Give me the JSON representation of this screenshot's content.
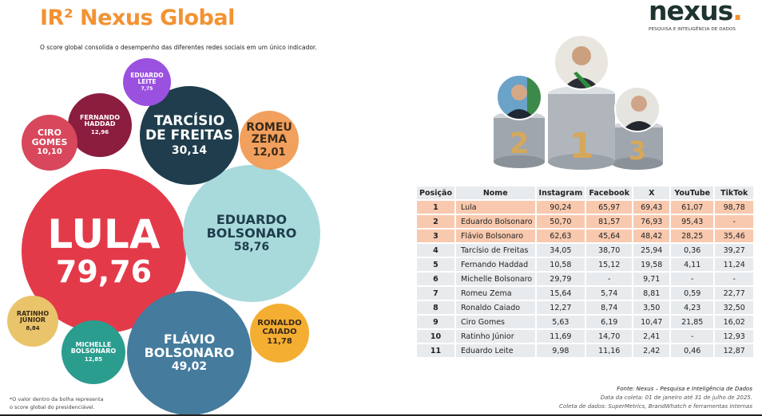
{
  "header": {
    "title": "IR² Nexus Global",
    "subtitle": "O score global consolida o desempenho das diferentes redes sociais em um único indicador."
  },
  "logo": {
    "word": "nexus",
    "dot": ".",
    "tagline": "PESQUISA E INTELIGÊNCIA DE DADOS"
  },
  "bubbles": [
    {
      "l1": "LULA",
      "l2": "",
      "value": "79,76",
      "color": "#e33a4a"
    },
    {
      "l1": "EDUARDO",
      "l2": "BOLSONARO",
      "value": "58,76",
      "color": "#a8dadc"
    },
    {
      "l1": "FLÁVIO",
      "l2": "BOLSONARO",
      "value": "49,02",
      "color": "#457b9d"
    },
    {
      "l1": "TARCÍSIO",
      "l2": "DE FREITAS",
      "value": "30,14",
      "color": "#1f3d4c"
    },
    {
      "l1": "FERNANDO",
      "l2": "HADDAD",
      "value": "12,96",
      "color": "#8b1d3f"
    },
    {
      "l1": "MICHELLE",
      "l2": "BOLSONARO",
      "value": "12,85",
      "color": "#2a9d8f"
    },
    {
      "l1": "ROMEU",
      "l2": "ZEMA",
      "value": "12,01",
      "color": "#f2a05e"
    },
    {
      "l1": "RONALDO",
      "l2": "CAIADO",
      "value": "11,78",
      "color": "#f4ae31"
    },
    {
      "l1": "CIRO",
      "l2": "GOMES",
      "value": "10,10",
      "color": "#d8475b"
    },
    {
      "l1": "RATINHO",
      "l2": "JÚNIOR",
      "value": "8,84",
      "color": "#e9c46a"
    },
    {
      "l1": "EDUARDO",
      "l2": "LEITE",
      "value": "7,75",
      "color": "#9b51e0"
    }
  ],
  "note": {
    "line1": "*O valor dentro da bolha representa",
    "line2": "o score global do presidenciável."
  },
  "podium": {
    "first": "1",
    "second": "2",
    "third": "3"
  },
  "table": {
    "headers": [
      "Posição",
      "Nome",
      "Instagram",
      "Facebook",
      "X",
      "YouTube",
      "TikTok"
    ],
    "rows": [
      [
        "1",
        "Lula",
        "90,24",
        "65,97",
        "69,43",
        "61,07",
        "98,78"
      ],
      [
        "2",
        "Eduardo Bolsonaro",
        "50,70",
        "81,57",
        "76,93",
        "95,43",
        "-"
      ],
      [
        "3",
        "Flávio Bolsonaro",
        "62,63",
        "45,64",
        "48,42",
        "28,25",
        "35,46"
      ],
      [
        "4",
        "Tarcísio de Freitas",
        "34,05",
        "38,70",
        "25,94",
        "0,36",
        "39,27"
      ],
      [
        "5",
        "Fernando Haddad",
        "10,58",
        "15,12",
        "19,58",
        "4,11",
        "11,24"
      ],
      [
        "6",
        "Michelle Bolsonaro",
        "29,79",
        "-",
        "9,71",
        "-",
        "-"
      ],
      [
        "7",
        "Romeu Zema",
        "15,64",
        "5,74",
        "8,81",
        "0,59",
        "22,77"
      ],
      [
        "8",
        "Ronaldo Caiado",
        "12,27",
        "8,74",
        "3,50",
        "4,23",
        "32,50"
      ],
      [
        "9",
        "Ciro Gomes",
        "5,63",
        "6,19",
        "10,47",
        "21,85",
        "16,02"
      ],
      [
        "10",
        "Ratinho Júnior",
        "11,69",
        "14,70",
        "2,41",
        "-",
        "12,93"
      ],
      [
        "11",
        "Eduardo Leite",
        "9,98",
        "11,16",
        "2,42",
        "0,46",
        "12,87"
      ]
    ]
  },
  "source": {
    "line1": "Fonte: Nexus – Pesquisa e Inteligência de Dados",
    "line2": "Data da coleta: 01 de janeiro até 31 de julho de 2025.",
    "line3": "Coleta de dados: SuperMetrics, BrandWhatch e ferramentas internas"
  }
}
